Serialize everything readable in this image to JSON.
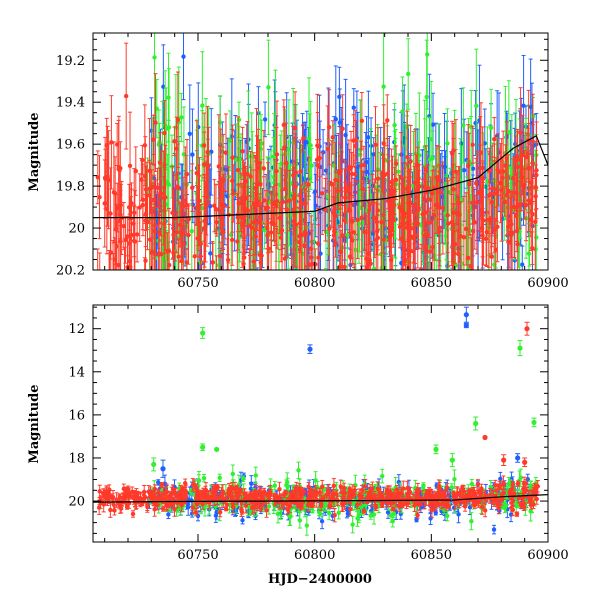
{
  "chart_data": [
    {
      "type": "scatter",
      "panel": "top",
      "title": "",
      "xlabel": "",
      "ylabel": "Magnitude",
      "xlim": [
        60705,
        60900
      ],
      "ylim": [
        20.2,
        19.07
      ],
      "y_inverted": true,
      "x_ticks": [
        60750,
        60800,
        60850,
        60900
      ],
      "y_ticks": [
        19.2,
        19.4,
        19.6,
        19.8,
        20,
        20.2
      ],
      "y_tick_labels": [
        "19.2",
        "19.4",
        "19.6",
        "19.8",
        "20",
        "20.2"
      ],
      "grid": false,
      "legend": "none",
      "series": [
        {
          "color": "#2060ff",
          "x_range": [
            60728,
            60895
          ],
          "center_mag": 19.88,
          "scatter": 0.22,
          "count": 320,
          "error_bar": 0.18
        },
        {
          "color": "#30f030",
          "x_range": [
            60728,
            60895
          ],
          "center_mag": 19.9,
          "scatter": 0.25,
          "count": 260,
          "error_bar": 0.2
        },
        {
          "color": "#ff3a2a",
          "x_range": [
            60707,
            60896
          ],
          "center_mag": 19.92,
          "scatter": 0.18,
          "count": 560,
          "error_bar": 0.16
        }
      ],
      "model_curve": {
        "color": "#000000",
        "x": [
          60705,
          60720,
          60740,
          60760,
          60780,
          60800,
          60810,
          60830,
          60850,
          60870,
          60885,
          60895,
          60900
        ],
        "y": [
          19.95,
          19.95,
          19.95,
          19.94,
          19.93,
          19.92,
          19.88,
          19.86,
          19.82,
          19.76,
          19.62,
          19.56,
          19.7
        ]
      }
    },
    {
      "type": "scatter",
      "panel": "bottom",
      "title": "",
      "xlabel": "HJD−2400000",
      "ylabel": "Magnitude",
      "xlim": [
        60705,
        60900
      ],
      "ylim": [
        21.9,
        10.9
      ],
      "y_inverted": true,
      "x_ticks": [
        60750,
        60800,
        60850,
        60900
      ],
      "x_tick_labels": [
        "60750",
        "60800",
        "60850",
        "60900"
      ],
      "y_ticks": [
        12,
        14,
        16,
        18,
        20
      ],
      "y_tick_labels": [
        "12",
        "14",
        "16",
        "18",
        "20"
      ],
      "grid": false,
      "legend": "none",
      "series": [
        {
          "color": "#2060ff",
          "x_range": [
            60728,
            60895
          ],
          "center_mag": 19.9,
          "scatter": 0.35,
          "count": 320,
          "error_bar": 0.25
        },
        {
          "color": "#30f030",
          "x_range": [
            60728,
            60895
          ],
          "center_mag": 19.95,
          "scatter": 0.45,
          "count": 260,
          "error_bar": 0.3
        },
        {
          "color": "#ff3a2a",
          "x_range": [
            60707,
            60896
          ],
          "center_mag": 19.85,
          "scatter": 0.28,
          "count": 560,
          "error_bar": 0.22
        }
      ],
      "outliers": [
        {
          "x": 60752,
          "y": 12.2,
          "color": "#30f030",
          "err": 0.25
        },
        {
          "x": 60798,
          "y": 12.95,
          "color": "#2060ff",
          "err": 0.2
        },
        {
          "x": 60865,
          "y": 11.35,
          "color": "#2060ff",
          "err": 0.35
        },
        {
          "x": 60865,
          "y": 11.85,
          "color": "#2060ff",
          "err": 0.1
        },
        {
          "x": 60891,
          "y": 12.0,
          "color": "#ff3a2a",
          "err": 0.3
        },
        {
          "x": 60888,
          "y": 12.9,
          "color": "#30f030",
          "err": 0.35
        },
        {
          "x": 60752,
          "y": 17.5,
          "color": "#30f030",
          "err": 0.15
        },
        {
          "x": 60869,
          "y": 16.4,
          "color": "#30f030",
          "err": 0.3
        },
        {
          "x": 60873,
          "y": 17.05,
          "color": "#ff3a2a",
          "err": 0.0
        },
        {
          "x": 60894,
          "y": 16.35,
          "color": "#30f030",
          "err": 0.2
        },
        {
          "x": 60735,
          "y": 18.5,
          "color": "#2060ff",
          "err": 0.4
        },
        {
          "x": 60731,
          "y": 18.3,
          "color": "#30f030",
          "err": 0.3
        },
        {
          "x": 60758,
          "y": 17.6,
          "color": "#30f030",
          "err": 0.0
        },
        {
          "x": 60852,
          "y": 17.6,
          "color": "#30f030",
          "err": 0.2
        },
        {
          "x": 60859,
          "y": 18.1,
          "color": "#30f030",
          "err": 0.3
        },
        {
          "x": 60881,
          "y": 18.1,
          "color": "#ff3a2a",
          "err": 0.25
        },
        {
          "x": 60887,
          "y": 18.0,
          "color": "#2060ff",
          "err": 0.2
        },
        {
          "x": 60890,
          "y": 18.2,
          "color": "#ff3a2a",
          "err": 0.2
        }
      ],
      "model_curve": {
        "color": "#000000",
        "x": [
          60705,
          60740,
          60780,
          60820,
          60860,
          60880,
          60900
        ],
        "y": [
          20.05,
          20.02,
          20.0,
          19.98,
          19.95,
          19.8,
          19.7
        ]
      }
    }
  ]
}
